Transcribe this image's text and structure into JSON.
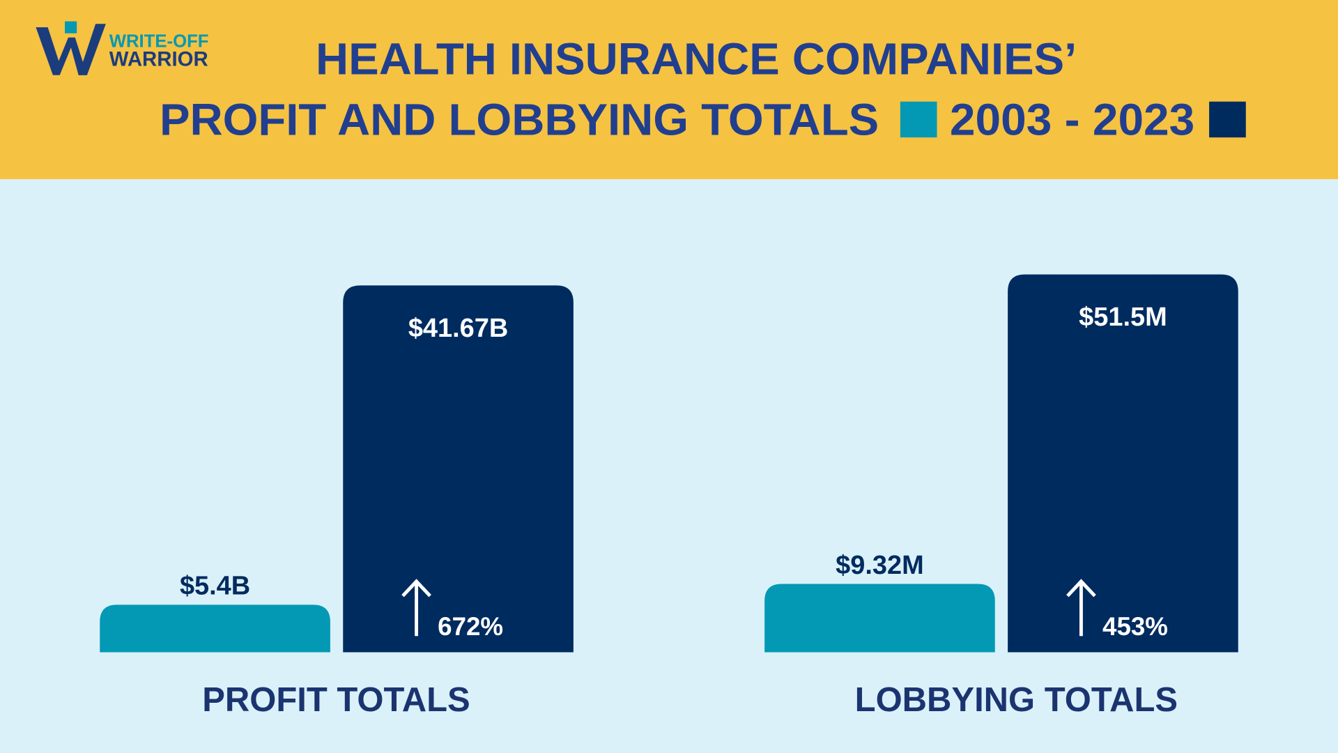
{
  "logo": {
    "line1": "WRITE-OFF",
    "line2": "WARRIOR"
  },
  "header": {
    "title_line1": "HEALTH INSURANCE COMPANIES’",
    "title_line2": "PROFIT AND LOBBYING TOTALS",
    "period": "2003 - 2023"
  },
  "chart_data": [
    {
      "type": "bar",
      "xlabel": "PROFIT TOTALS",
      "ylim": [
        0,
        45
      ],
      "series": [
        {
          "color": "#0399b4",
          "values": [
            5.4
          ],
          "value_labels": [
            "$5.4B"
          ]
        },
        {
          "color": "#002b5f",
          "values": [
            41.67
          ],
          "value_labels": [
            "$41.67B"
          ]
        }
      ],
      "change": {
        "value": 672,
        "label": "672%"
      }
    },
    {
      "type": "bar",
      "xlabel": "LOBBYING TOTALS",
      "ylim": [
        0,
        54
      ],
      "series": [
        {
          "color": "#0399b4",
          "values": [
            9.32
          ],
          "value_labels": [
            "$9.32M"
          ]
        },
        {
          "color": "#002b5f",
          "values": [
            51.5
          ],
          "value_labels": [
            "$51.5M"
          ]
        }
      ],
      "change": {
        "value": 453,
        "label": "453%"
      }
    }
  ]
}
